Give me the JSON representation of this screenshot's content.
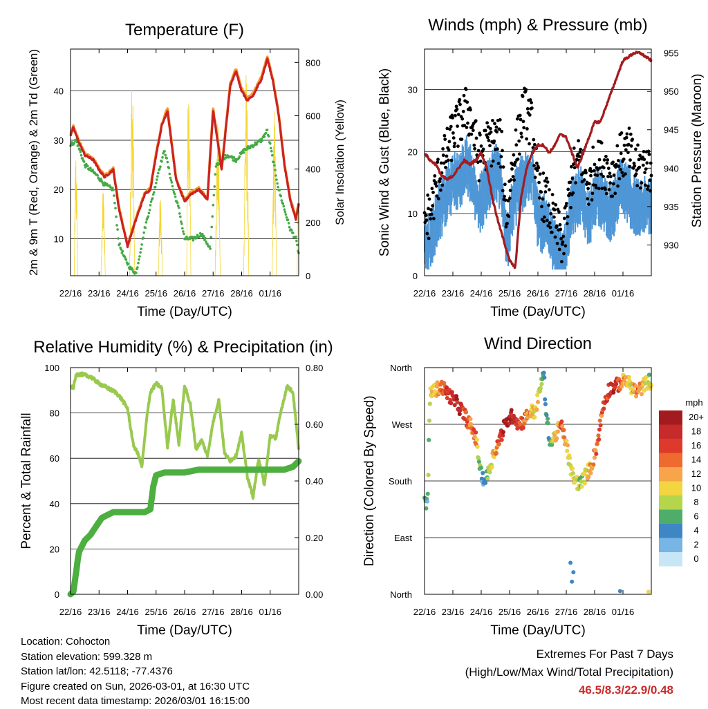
{
  "chart_data": [
    {
      "type": "line",
      "title": "Temperature (F)",
      "xlabel": "Time (Day/UTC)",
      "ylabel_left": "2m & 9m T (Red, Orange) & 2m Td (Green)",
      "ylabel_right": "Solar Insolation (Yellow)",
      "x_ticks": [
        "22/16",
        "23/16",
        "24/16",
        "25/16",
        "26/16",
        "27/16",
        "28/16",
        "01/16"
      ],
      "ylim_left": [
        2.5,
        48.5
      ],
      "y_ticks_left": [
        10,
        20,
        30,
        40
      ],
      "ylim_right": [
        0,
        850
      ],
      "y_ticks_right": [
        0,
        200,
        400,
        600,
        800
      ],
      "series": [
        {
          "name": "2m T",
          "color": "#cc2222",
          "x": [
            0,
            0.1,
            0.3,
            0.5,
            0.8,
            1.0,
            1.2,
            1.5,
            1.7,
            1.9,
            2.0,
            2.3,
            2.6,
            2.8,
            3.0,
            3.2,
            3.4,
            3.7,
            4.0,
            4.2,
            4.5,
            4.8,
            5.0,
            5.3,
            5.6,
            5.8,
            6.0,
            6.2,
            6.4,
            6.7,
            6.9,
            7.1,
            7.3,
            7.5,
            7.7,
            7.9,
            8.0
          ],
          "values": [
            31,
            32.5,
            29.5,
            27,
            26,
            24,
            22.5,
            24,
            16,
            11,
            8.5,
            14,
            19,
            20,
            27,
            33,
            36,
            22,
            17.5,
            19,
            20,
            18,
            36,
            24,
            41,
            44,
            40,
            38,
            39,
            42.5,
            46.5,
            42,
            35,
            25,
            18,
            14,
            17
          ]
        },
        {
          "name": "9m T",
          "color": "#f39a2f",
          "x": [
            0,
            0.1,
            0.3,
            0.5,
            0.8,
            1.0,
            1.2,
            1.5,
            1.7,
            1.9,
            2.0,
            2.3,
            2.6,
            2.8,
            3.0,
            3.2,
            3.4,
            3.7,
            4.0,
            4.2,
            4.5,
            4.8,
            5.0,
            5.3,
            5.6,
            5.8,
            6.0,
            6.2,
            6.4,
            6.7,
            6.9,
            7.1,
            7.3,
            7.5,
            7.7,
            7.9,
            8.0
          ],
          "values": [
            31.3,
            32.8,
            29.8,
            27.3,
            26.3,
            24.3,
            22.8,
            24.3,
            16.3,
            11.3,
            8.8,
            14.3,
            19.3,
            20.3,
            27.3,
            33.3,
            36.6,
            22.3,
            17.8,
            19.3,
            20.3,
            18.3,
            36.5,
            24.3,
            41.5,
            44.5,
            40.5,
            38.5,
            39.5,
            43,
            47,
            42.3,
            35.3,
            25.3,
            18.3,
            14.3,
            17.3
          ]
        },
        {
          "name": "2m Td",
          "color": "#44aa44",
          "x": [
            0,
            0.2,
            0.5,
            0.9,
            1.2,
            1.5,
            1.7,
            1.9,
            2.1,
            2.3,
            2.6,
            2.9,
            3.1,
            3.3,
            3.6,
            3.8,
            4.0,
            4.3,
            4.6,
            4.9,
            5.1,
            5.5,
            5.8,
            6.1,
            6.4,
            6.7,
            6.9,
            7.1,
            7.3,
            7.5,
            7.7,
            7.9,
            8.0
          ],
          "values": [
            29,
            30,
            25,
            23,
            21,
            20,
            9,
            6,
            4,
            3,
            12,
            19,
            24,
            28,
            20,
            16,
            10,
            10,
            11,
            8,
            25,
            27,
            26,
            28,
            29,
            30,
            32,
            26,
            20,
            16,
            12,
            10,
            7
          ]
        },
        {
          "name": "Solar Insolation",
          "color": "#f5d633",
          "axis": "right"
        }
      ]
    },
    {
      "type": "scatter",
      "title": "Winds (mph) & Pressure (mb)",
      "xlabel": "Time (Day/UTC)",
      "ylabel_left": "Sonic Wind & Gust (Blue, Black)",
      "ylabel_right": "Station Pressure (Maroon)",
      "x_ticks": [
        "22/16",
        "23/16",
        "24/16",
        "25/16",
        "26/16",
        "27/16",
        "28/16",
        "01/16"
      ],
      "ylim_left": [
        0,
        36.5
      ],
      "y_ticks_left": [
        0,
        10,
        20,
        30
      ],
      "ylim_right": [
        926,
        955.5
      ],
      "y_ticks_right": [
        930,
        935,
        940,
        945,
        950,
        955
      ],
      "series": [
        {
          "name": "Sonic Wind",
          "color": "#4f97d6",
          "x": [
            0,
            0.2,
            0.5,
            0.8,
            1.0,
            1.3,
            1.5,
            1.7,
            1.9,
            2.2,
            2.5,
            2.7,
            2.9,
            3.1,
            3.3,
            3.5,
            3.8,
            4.0,
            4.3,
            4.6,
            4.9,
            5.2,
            5.5,
            5.8,
            6.0,
            6.3,
            6.6,
            6.9,
            7.2,
            7.5,
            7.8,
            8.0
          ],
          "values": [
            7,
            6,
            11,
            14,
            16,
            17,
            19,
            16,
            12,
            15,
            18,
            16,
            6,
            12,
            15,
            16,
            18,
            10,
            9,
            5,
            3,
            12,
            14,
            10,
            14,
            13,
            11,
            15,
            14,
            12,
            13,
            12
          ]
        },
        {
          "name": "Gust",
          "color": "#000000",
          "x": [
            0,
            0.2,
            0.5,
            0.8,
            1.0,
            1.3,
            1.5,
            1.7,
            1.9,
            2.2,
            2.5,
            2.7,
            2.9,
            3.1,
            3.3,
            3.5,
            3.8,
            4.0,
            4.3,
            4.6,
            4.9,
            5.2,
            5.5,
            5.8,
            6.0,
            6.3,
            6.6,
            6.9,
            7.2,
            7.5,
            7.8,
            8.0
          ],
          "values": [
            9,
            10,
            16,
            20,
            23,
            25,
            27,
            24,
            19,
            21,
            22,
            21,
            9,
            18,
            22,
            27,
            24,
            14,
            12,
            8,
            5,
            16,
            19,
            14,
            18,
            18,
            16,
            19,
            20,
            17,
            18,
            16
          ]
        },
        {
          "name": "Station Pressure",
          "color": "#a31b1f",
          "axis": "right",
          "x": [
            0,
            0.2,
            0.4,
            0.6,
            0.8,
            1.0,
            1.2,
            1.4,
            1.6,
            1.8,
            2.0,
            2.2,
            2.4,
            2.6,
            2.8,
            3.0,
            3.2,
            3.4,
            3.6,
            3.8,
            4.0,
            4.2,
            4.4,
            4.6,
            4.8,
            5.0,
            5.2,
            5.4,
            5.6,
            5.8,
            6.0,
            6.2,
            6.4,
            6.6,
            6.8,
            7.0,
            7.2,
            7.4,
            7.6,
            7.8,
            8.0
          ],
          "values": [
            942,
            941,
            940.5,
            939,
            938.5,
            939,
            940,
            941,
            940.5,
            941,
            942,
            940,
            936,
            933,
            930.5,
            928,
            927,
            936,
            940,
            942,
            943,
            943,
            942,
            943,
            944.5,
            944,
            942,
            940,
            942,
            944,
            946,
            946,
            948,
            950,
            952,
            954,
            954.5,
            955,
            955,
            954.5,
            954
          ]
        }
      ]
    },
    {
      "type": "line",
      "title": "Relative Humidity (%) & Precipitation (in)",
      "xlabel": "Time (Day/UTC)",
      "ylabel_left": "Percent & Total Rainfall",
      "x_ticks": [
        "22/16",
        "23/16",
        "24/16",
        "25/16",
        "26/16",
        "27/16",
        "28/16",
        "01/16"
      ],
      "ylim_left": [
        0,
        100
      ],
      "y_ticks_left": [
        0,
        20,
        40,
        60,
        80,
        100
      ],
      "ylim_right": [
        0,
        0.8
      ],
      "y_ticks_right": [
        "0.00",
        "0.20",
        "0.40",
        "0.60",
        "0.80"
      ],
      "series": [
        {
          "name": "Relative Humidity",
          "color": "#99c94e",
          "x": [
            0,
            0.1,
            0.2,
            0.4,
            0.7,
            1.0,
            1.3,
            1.6,
            1.8,
            2.0,
            2.2,
            2.4,
            2.5,
            2.7,
            2.8,
            3.0,
            3.2,
            3.4,
            3.6,
            3.8,
            4.0,
            4.2,
            4.4,
            4.6,
            4.8,
            5.0,
            5.2,
            5.4,
            5.6,
            5.8,
            6.0,
            6.2,
            6.4,
            6.6,
            6.8,
            7.0,
            7.2,
            7.4,
            7.6,
            7.8,
            8.0
          ],
          "values": [
            92,
            91,
            97,
            97,
            96,
            93,
            91,
            89,
            86,
            82,
            66,
            61,
            56,
            81,
            89,
            93,
            91,
            65,
            86,
            66,
            92,
            84,
            64,
            68,
            61,
            76,
            86,
            62,
            59,
            61,
            71,
            52,
            43,
            60,
            48,
            70,
            69,
            82,
            92,
            89,
            64
          ]
        },
        {
          "name": "Total Precipitation",
          "color": "#4caf3f",
          "axis": "right",
          "x": [
            0,
            0.1,
            0.2,
            0.25,
            0.3,
            0.5,
            0.7,
            0.9,
            1.1,
            1.3,
            1.5,
            1.8,
            2.0,
            2.3,
            2.6,
            2.8,
            2.9,
            3.0,
            3.3,
            3.6,
            4.0,
            4.5,
            5.0,
            5.5,
            6.0,
            6.5,
            7.0,
            7.5,
            7.8,
            8.0
          ],
          "values": [
            0,
            0.01,
            0.08,
            0.12,
            0.15,
            0.19,
            0.21,
            0.24,
            0.27,
            0.28,
            0.29,
            0.29,
            0.29,
            0.29,
            0.29,
            0.3,
            0.38,
            0.42,
            0.43,
            0.43,
            0.43,
            0.44,
            0.44,
            0.44,
            0.44,
            0.44,
            0.44,
            0.44,
            0.45,
            0.47
          ]
        }
      ]
    },
    {
      "type": "scatter",
      "title": "Wind Direction",
      "xlabel": "Time (Day/UTC)",
      "ylabel_left": "Direction (Colored By Speed)",
      "x_ticks": [
        "22/16",
        "23/16",
        "24/16",
        "25/16",
        "26/16",
        "27/16",
        "28/16",
        "01/16"
      ],
      "y_ticks": [
        "North",
        "East",
        "South",
        "West",
        "North"
      ],
      "ylim": [
        0,
        360
      ],
      "x": [
        0.0,
        0.1,
        0.2,
        0.4,
        0.6,
        0.8,
        1.0,
        1.2,
        1.4,
        1.6,
        1.8,
        2.0,
        2.15,
        2.3,
        2.45,
        2.6,
        2.8,
        3.0,
        3.15,
        3.3,
        3.5,
        3.7,
        3.9,
        4.0,
        4.1,
        4.2,
        4.3,
        4.45,
        4.6,
        4.8,
        5.0,
        5.15,
        5.3,
        5.5,
        5.7,
        5.9,
        6.1,
        6.3,
        6.5,
        6.7,
        6.9,
        7.1,
        7.3,
        7.5,
        7.7,
        7.9,
        8.0
      ],
      "values": [
        150,
        140,
        320,
        325,
        330,
        320,
        310,
        300,
        285,
        270,
        250,
        190,
        180,
        200,
        225,
        240,
        265,
        280,
        285,
        270,
        275,
        290,
        290,
        310,
        330,
        355,
        280,
        240,
        250,
        270,
        240,
        200,
        180,
        175,
        190,
        205,
        240,
        300,
        325,
        330,
        335,
        340,
        330,
        320,
        330,
        340,
        335
      ],
      "speeds": [
        6,
        3,
        10,
        12,
        14,
        16,
        18,
        18,
        16,
        14,
        14,
        4,
        4,
        10,
        12,
        14,
        20,
        20,
        18,
        16,
        14,
        12,
        10,
        12,
        8,
        4,
        4,
        6,
        10,
        14,
        12,
        8,
        10,
        8,
        10,
        12,
        14,
        14,
        16,
        18,
        14,
        12,
        10,
        14,
        10,
        8,
        10
      ],
      "colorbar": {
        "label": "mph",
        "ticks": [
          "20+",
          "18",
          "16",
          "14",
          "12",
          "10",
          "8",
          "6",
          "4",
          "2",
          "0"
        ],
        "colors": [
          "#a31b1f",
          "#c62a2a",
          "#dd3a2c",
          "#ee6a2e",
          "#f7a44a",
          "#f1d63f",
          "#b5d54b",
          "#4fad6a",
          "#3e87c4",
          "#76b5e4",
          "#c7e7f7"
        ]
      }
    }
  ],
  "info": {
    "location": "Location: Cohocton",
    "elevation": "Station elevation: 599.328 m",
    "latlon": "Station lat/lon: 42.5118; -77.4376",
    "created": "Figure created on Sun, 2026-03-01, at 16:30 UTC",
    "recent": "Most recent data timestamp: 2026/03/01 16:15:00"
  },
  "extremes": {
    "heading": "Extremes For Past 7 Days",
    "subheading": "(High/Low/Max Wind/Total Precipitation)",
    "values": "46.5/8.3/22.9/0.48"
  }
}
